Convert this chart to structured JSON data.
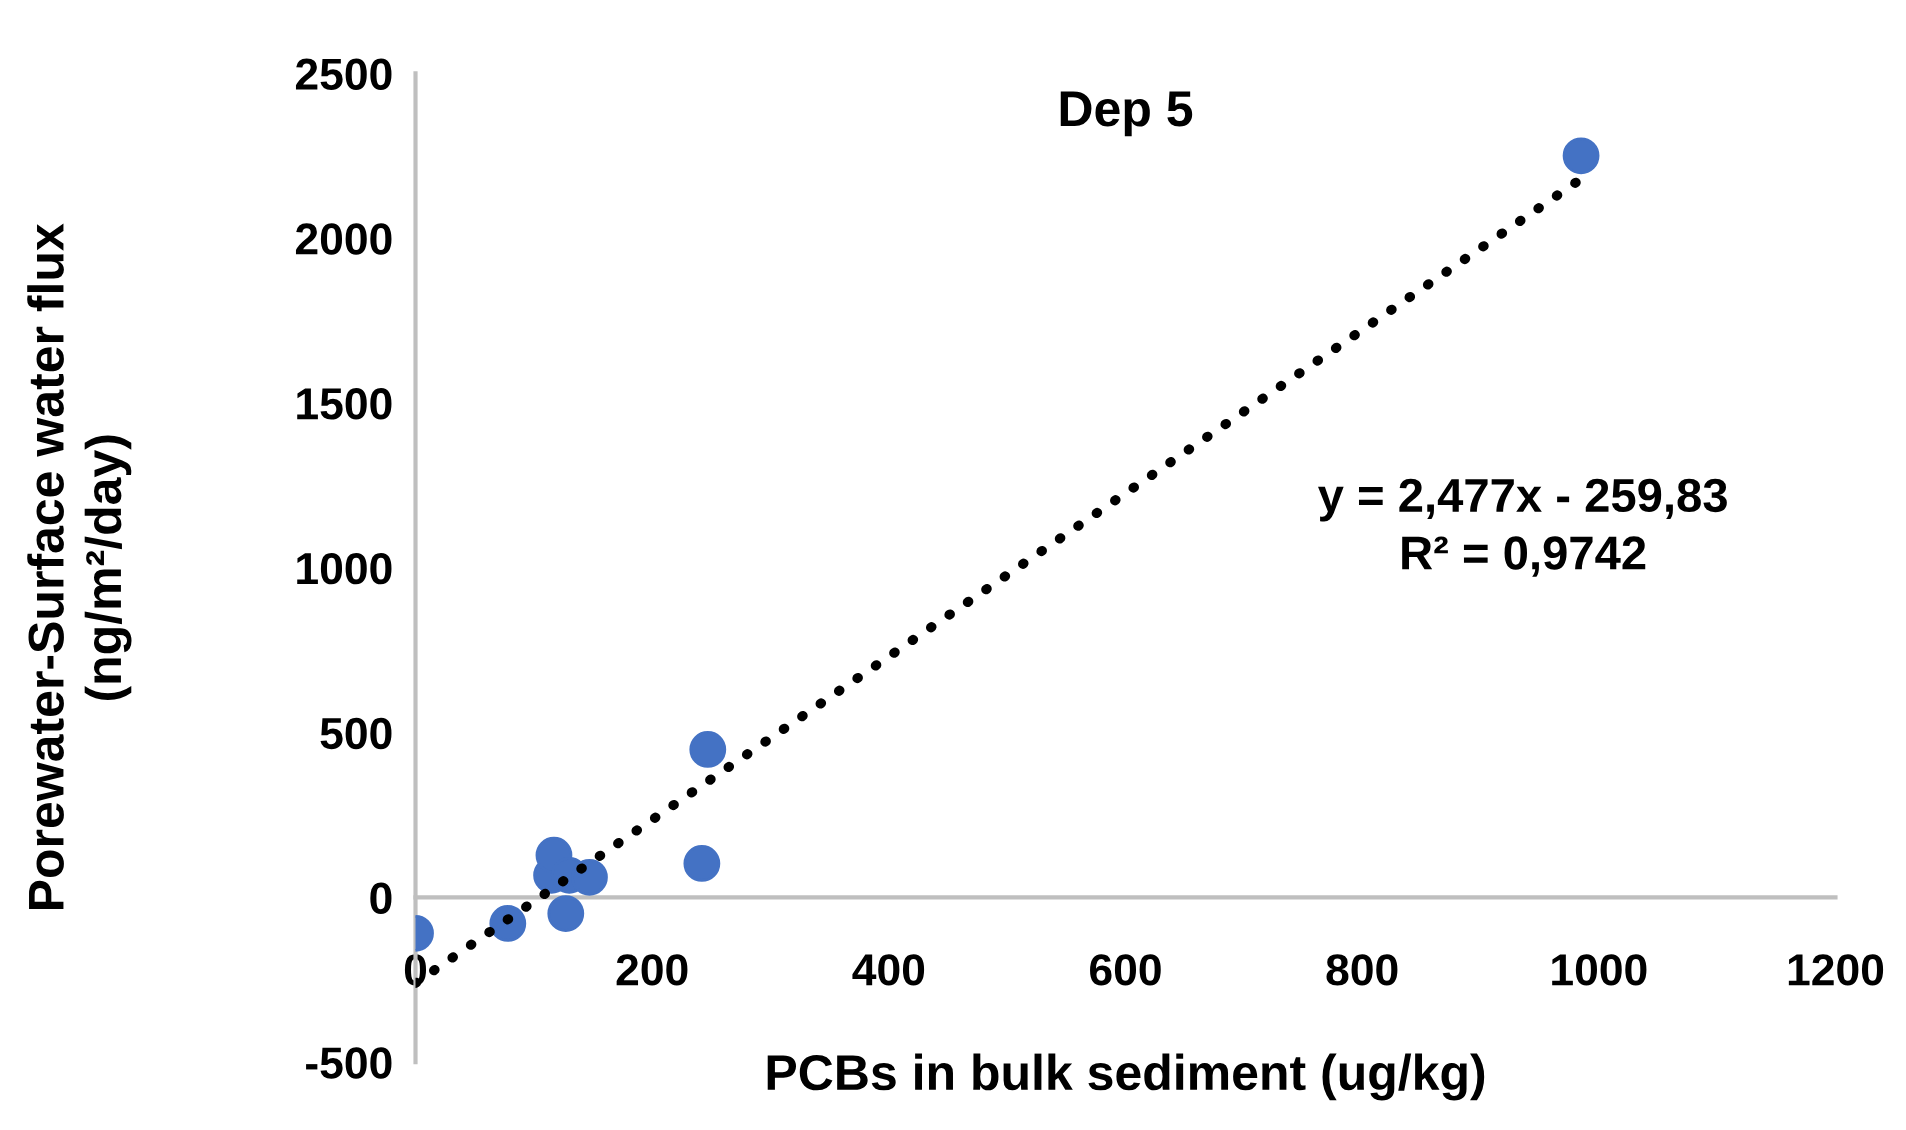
{
  "chart_data": {
    "type": "scatter",
    "title": "Dep 5",
    "xlabel": "PCBs in bulk sediment (ug/kg)",
    "ylabel": "Porewater-Surface water flux\n(ng/m²/day)",
    "series": [
      {
        "color": "#4472c4",
        "marker": "circle",
        "x": [
          0,
          78,
          115,
          117,
          130,
          127,
          147,
          242,
          247,
          985
        ],
        "values": [
          -109,
          -79,
          67,
          128,
          67,
          -49,
          61,
          103,
          449,
          2250
        ]
      },
      {
        "type": "line",
        "color": "#000000",
        "marker": "none",
        "line_style": "dotted",
        "x": [
          0,
          985
        ],
        "values": [
          -260,
          2180
        ]
      }
    ],
    "annotations": [
      "y = 2,477x - 259,83\nR² = 0,9742"
    ],
    "xlim": [
      0,
      1200
    ],
    "xticks": [
      0,
      200,
      400,
      600,
      800,
      1000,
      1200
    ],
    "ylim": [
      -500,
      2500
    ],
    "yticks": [
      -500,
      0,
      500,
      1000,
      1500,
      2000,
      2500
    ],
    "grid": false
  }
}
